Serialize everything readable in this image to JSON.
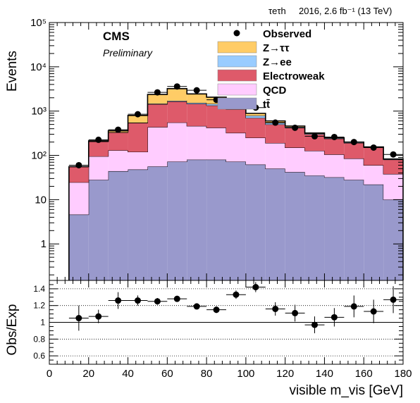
{
  "header": {
    "channel_label": "τeτh",
    "lumi_label": "2016, 2.6 fb⁻¹ (13 TeV)"
  },
  "labels": {
    "experiment": "CMS",
    "status": "Preliminary"
  },
  "chart_data": [
    {
      "type": "bar",
      "stacked": true,
      "yscale": "log",
      "x_bin_edges": [
        10,
        20,
        30,
        40,
        50,
        60,
        70,
        80,
        90,
        100,
        110,
        120,
        130,
        140,
        150,
        160,
        170,
        180
      ],
      "xlim": [
        0,
        180
      ],
      "ylim": [
        0.15,
        100000
      ],
      "ylabel": "Events",
      "y_tick_labels": [
        "1",
        "10",
        "10²",
        "10³",
        "10⁴",
        "10⁵"
      ],
      "series": [
        {
          "name": "tt̄",
          "color": "#9999cc",
          "values": [
            4.6,
            28,
            44,
            48,
            56,
            72,
            80,
            80,
            72,
            62,
            50,
            42,
            35,
            32,
            28,
            22,
            10
          ]
        },
        {
          "name": "QCD",
          "color": "#ffccff",
          "values": [
            20,
            67,
            86,
            72,
            380,
            480,
            380,
            340,
            250,
            188,
            140,
            108,
            92,
            73,
            57,
            38,
            28
          ]
        },
        {
          "name": "Electroweak",
          "color": "#de5a6a",
          "values": [
            31,
            110,
            200,
            420,
            1000,
            1100,
            1000,
            920,
            778,
            450,
            310,
            270,
            173,
            133,
            105,
            90,
            42
          ]
        },
        {
          "name": "Z→ee",
          "color": "#99ccff",
          "values": [
            0,
            3,
            5,
            10,
            40,
            60,
            80,
            120,
            150,
            90,
            40,
            20,
            10,
            7,
            5,
            3,
            2
          ]
        },
        {
          "name": "Z→ττ",
          "color": "#ffcc66",
          "values": [
            0,
            5,
            25,
            250,
            900,
            1500,
            900,
            600,
            250,
            100,
            60,
            20,
            10,
            5,
            5,
            2,
            1
          ]
        }
      ],
      "observed": {
        "name": "Observed",
        "x": [
          15,
          25,
          35,
          45,
          55,
          65,
          75,
          85,
          95,
          105,
          115,
          125,
          135,
          145,
          155,
          165,
          175
        ],
        "y": [
          60,
          225,
          380,
          850,
          2650,
          3600,
          2950,
          1800,
          1610,
          1200,
          550,
          420,
          270,
          260,
          200,
          150,
          105
        ]
      },
      "legend_position": "top-right"
    },
    {
      "type": "scatter",
      "panel": "ratio",
      "ylabel": "Obs/Exp",
      "xlabel": "visible m_vis [GeV]",
      "ylim": [
        0.5,
        1.5
      ],
      "xlim": [
        0,
        180
      ],
      "y_ticks": [
        0.6,
        0.8,
        1,
        1.2,
        1.4
      ],
      "y_tick_labels": [
        "0.6",
        "0.8",
        "1",
        "1.2",
        "1.4"
      ],
      "x_ticks": [
        0,
        20,
        40,
        60,
        80,
        100,
        120,
        140,
        160,
        180
      ],
      "x_tick_labels": [
        "0",
        "20",
        "40",
        "60",
        "80",
        "100",
        "120",
        "140",
        "160",
        "180"
      ],
      "grid": true,
      "x": [
        15,
        25,
        35,
        45,
        55,
        65,
        75,
        85,
        95,
        105,
        115,
        125,
        135,
        145,
        155,
        165,
        175
      ],
      "y": [
        1.05,
        1.07,
        1.26,
        1.26,
        1.25,
        1.28,
        1.19,
        1.15,
        1.33,
        1.42,
        1.16,
        1.11,
        0.97,
        1.06,
        1.19,
        1.13,
        1.27
      ],
      "err": [
        0.15,
        0.08,
        0.1,
        0.06,
        0.04,
        0.03,
        0.03,
        0.04,
        0.05,
        0.06,
        0.08,
        0.1,
        0.1,
        0.11,
        0.13,
        0.14,
        0.16
      ]
    }
  ]
}
